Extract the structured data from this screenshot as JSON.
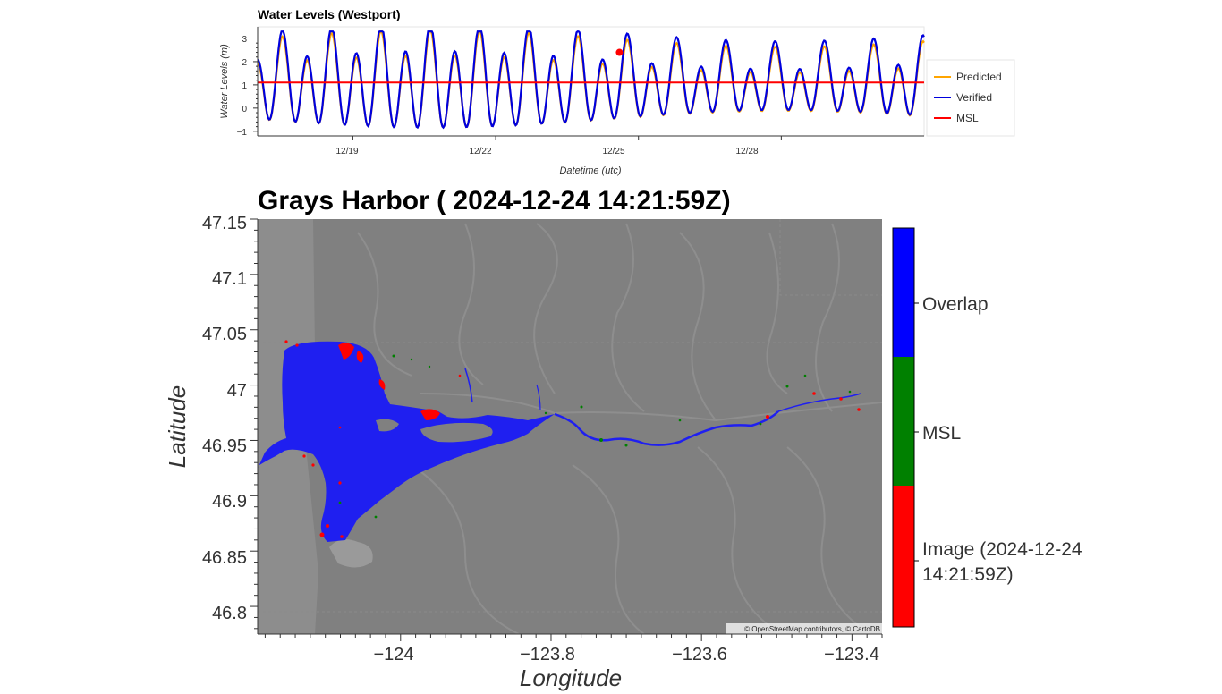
{
  "top_chart": {
    "title": "Water Levels (Westport)",
    "ylabel": "Water Levels (m)",
    "xlabel": "Datetime (utc)",
    "yticks": [
      "−1",
      "0",
      "1",
      "2",
      "3"
    ],
    "xticks": [
      "12/19",
      "12/22",
      "12/25",
      "12/28"
    ],
    "legend": [
      "Predicted",
      "Verified",
      "MSL"
    ]
  },
  "map": {
    "title": "Grays Harbor ( 2024-12-24 14:21:59Z)",
    "xlabel": "Longitude",
    "ylabel": "Latitude",
    "xticks": [
      "−124",
      "−123.8",
      "−123.6",
      "−123.4"
    ],
    "yticks": [
      "47.15",
      "47.1",
      "47.05",
      "47",
      "46.95",
      "46.9",
      "46.85",
      "46.8"
    ],
    "colorbar": [
      "Overlap",
      "MSL",
      "Image (2024-12-24",
      "14:21:59Z)"
    ],
    "attribution": "© OpenStreetMap contributors, © CartoDB"
  },
  "colors": {
    "predicted": "#ffa500",
    "verified": "#0000dd",
    "msl": "#ff0000",
    "overlap": "#0000ff",
    "msl_band": "#008000",
    "image_band": "#ff0000",
    "map_bg": "#808080"
  },
  "chart_data": [
    {
      "type": "line",
      "title": "Water Levels (Westport)",
      "xlabel": "Datetime (utc)",
      "ylabel": "Water Levels (m)",
      "x_unit": "days (Dec 2024)",
      "xlim": [
        17.0,
        31.0
      ],
      "ylim": [
        -1.2,
        3.5
      ],
      "x_ticks": [
        19,
        22,
        25,
        28
      ],
      "series": [
        {
          "name": "Predicted",
          "color": "#ffa500",
          "tide": {
            "mean": 1.0,
            "semi_amp": 1.45,
            "diurnal_amp": 0.55,
            "phase": 0.15
          }
        },
        {
          "name": "Verified",
          "color": "#0000dd",
          "tide": {
            "mean": 1.12,
            "semi_amp": 1.55,
            "diurnal_amp": 0.6,
            "phase": 0.15
          }
        },
        {
          "name": "MSL",
          "color": "#ff0000",
          "values": [
            1.1,
            1.1
          ]
        }
      ],
      "marker": {
        "x": 24.6,
        "y": 2.4
      },
      "legend": "right"
    },
    {
      "type": "heatmap",
      "title": "Grays Harbor ( 2024-12-24 14:21:59Z)",
      "xlabel": "Longitude",
      "ylabel": "Latitude",
      "xlim": [
        -124.19,
        -123.36
      ],
      "ylim": [
        46.775,
        47.15
      ],
      "categories": [
        "Overlap",
        "MSL",
        "Image (2024-12-24 14:21:59Z)"
      ],
      "category_colors": [
        "#0000ff",
        "#008000",
        "#ff0000"
      ]
    }
  ]
}
